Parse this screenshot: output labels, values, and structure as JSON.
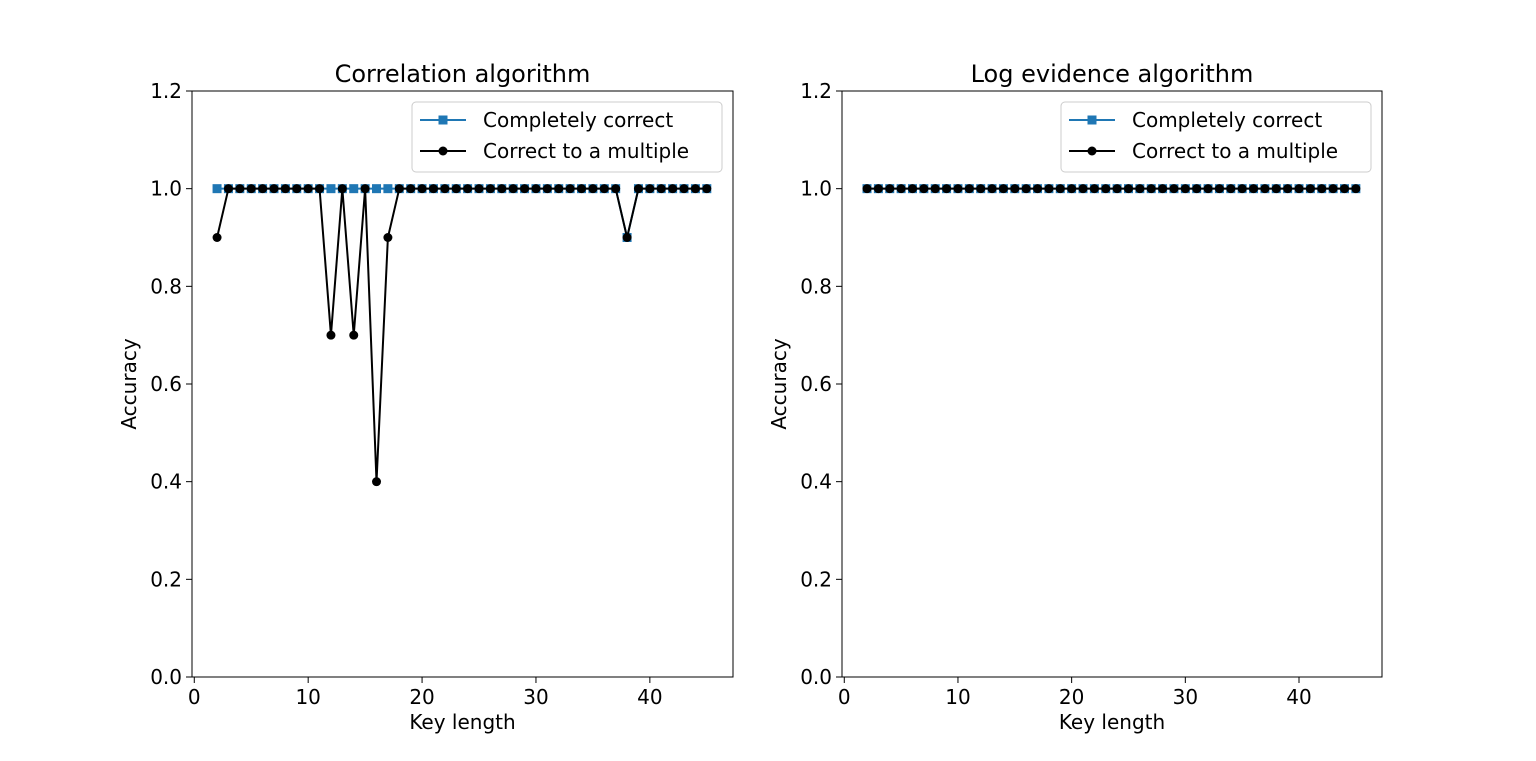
{
  "chart_data": [
    {
      "type": "line",
      "title": "Correlation algorithm",
      "xlabel": "Key length",
      "ylabel": "Accuracy",
      "xlim": [
        -0.2,
        47.3
      ],
      "ylim": [
        0.0,
        1.2
      ],
      "xticks": [
        "0",
        "10",
        "20",
        "30",
        "40"
      ],
      "yticks": [
        "0.0",
        "0.2",
        "0.4",
        "0.6",
        "0.8",
        "1.0",
        "1.2"
      ],
      "legend_position": "top-right",
      "grid": false,
      "x": [
        2,
        3,
        4,
        5,
        6,
        7,
        8,
        9,
        10,
        11,
        12,
        13,
        14,
        15,
        16,
        17,
        18,
        19,
        20,
        21,
        22,
        23,
        24,
        25,
        26,
        27,
        28,
        29,
        30,
        31,
        32,
        33,
        34,
        35,
        36,
        37,
        38,
        39,
        40,
        41,
        42,
        43,
        44,
        45
      ],
      "series": [
        {
          "name": "Completely correct",
          "color": "#1f77b4",
          "marker": "square",
          "values": [
            1,
            1,
            1,
            1,
            1,
            1,
            1,
            1,
            1,
            1,
            1,
            1,
            1,
            1,
            1,
            1,
            1,
            1,
            1,
            1,
            1,
            1,
            1,
            1,
            1,
            1,
            1,
            1,
            1,
            1,
            1,
            1,
            1,
            1,
            1,
            1,
            0.9,
            1,
            1,
            1,
            1,
            1,
            1,
            1
          ]
        },
        {
          "name": "Correct to a multiple",
          "color": "#000000",
          "marker": "circle",
          "values": [
            0.9,
            1,
            1,
            1,
            1,
            1,
            1,
            1,
            1,
            1,
            0.7,
            1,
            0.7,
            1,
            0.4,
            0.9,
            1,
            1,
            1,
            1,
            1,
            1,
            1,
            1,
            1,
            1,
            1,
            1,
            1,
            1,
            1,
            1,
            1,
            1,
            1,
            1,
            0.9,
            1,
            1,
            1,
            1,
            1,
            1,
            1
          ]
        }
      ]
    },
    {
      "type": "line",
      "title": "Log evidence algorithm",
      "xlabel": "Key length",
      "ylabel": "Accuracy",
      "xlim": [
        -0.2,
        47.3
      ],
      "ylim": [
        0.0,
        1.2
      ],
      "xticks": [
        "0",
        "10",
        "20",
        "30",
        "40"
      ],
      "yticks": [
        "0.0",
        "0.2",
        "0.4",
        "0.6",
        "0.8",
        "1.0",
        "1.2"
      ],
      "legend_position": "top-right",
      "grid": false,
      "x": [
        2,
        3,
        4,
        5,
        6,
        7,
        8,
        9,
        10,
        11,
        12,
        13,
        14,
        15,
        16,
        17,
        18,
        19,
        20,
        21,
        22,
        23,
        24,
        25,
        26,
        27,
        28,
        29,
        30,
        31,
        32,
        33,
        34,
        35,
        36,
        37,
        38,
        39,
        40,
        41,
        42,
        43,
        44,
        45
      ],
      "series": [
        {
          "name": "Completely correct",
          "color": "#1f77b4",
          "marker": "square",
          "values": [
            1,
            1,
            1,
            1,
            1,
            1,
            1,
            1,
            1,
            1,
            1,
            1,
            1,
            1,
            1,
            1,
            1,
            1,
            1,
            1,
            1,
            1,
            1,
            1,
            1,
            1,
            1,
            1,
            1,
            1,
            1,
            1,
            1,
            1,
            1,
            1,
            1,
            1,
            1,
            1,
            1,
            1,
            1,
            1
          ]
        },
        {
          "name": "Correct to a multiple",
          "color": "#000000",
          "marker": "circle",
          "values": [
            1,
            1,
            1,
            1,
            1,
            1,
            1,
            1,
            1,
            1,
            1,
            1,
            1,
            1,
            1,
            1,
            1,
            1,
            1,
            1,
            1,
            1,
            1,
            1,
            1,
            1,
            1,
            1,
            1,
            1,
            1,
            1,
            1,
            1,
            1,
            1,
            1,
            1,
            1,
            1,
            1,
            1,
            1,
            1
          ]
        }
      ]
    }
  ]
}
